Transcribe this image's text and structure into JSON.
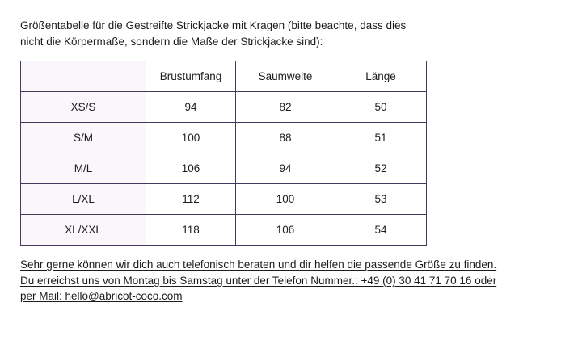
{
  "intro": {
    "line1": "Größentabelle für die Gestreifte Strickjacke mit Kragen (bitte beachte, dass dies",
    "line2": "nicht die Körpermaße, sondern die Maße der Strickjacke sind):"
  },
  "table": {
    "headers": [
      "",
      "Brustumfang",
      "Saumweite",
      "Länge"
    ],
    "rows": [
      {
        "label": "XS/S",
        "values": [
          "94",
          "82",
          "50"
        ]
      },
      {
        "label": "S/M",
        "values": [
          "100",
          "88",
          "51"
        ]
      },
      {
        "label": "M/L",
        "values": [
          "106",
          "94",
          "52"
        ]
      },
      {
        "label": "L/XL",
        "values": [
          "112",
          "100",
          "53"
        ]
      },
      {
        "label": "XL/XXL",
        "values": [
          "118",
          "106",
          "54"
        ]
      }
    ]
  },
  "footer": {
    "line1": "Sehr gerne können wir dich auch telefonisch beraten und dir helfen die passende Größe zu finden.",
    "line2": "Du erreichst uns von Montag bis Samstag unter der Telefon Nummer.: +49 (0) 30 41 71 70 16 oder",
    "line3": "per Mail: hello@abricot-coco.com",
    "colors": {
      "border": "#43395f",
      "label_column_bg": "#faf6fc"
    }
  }
}
